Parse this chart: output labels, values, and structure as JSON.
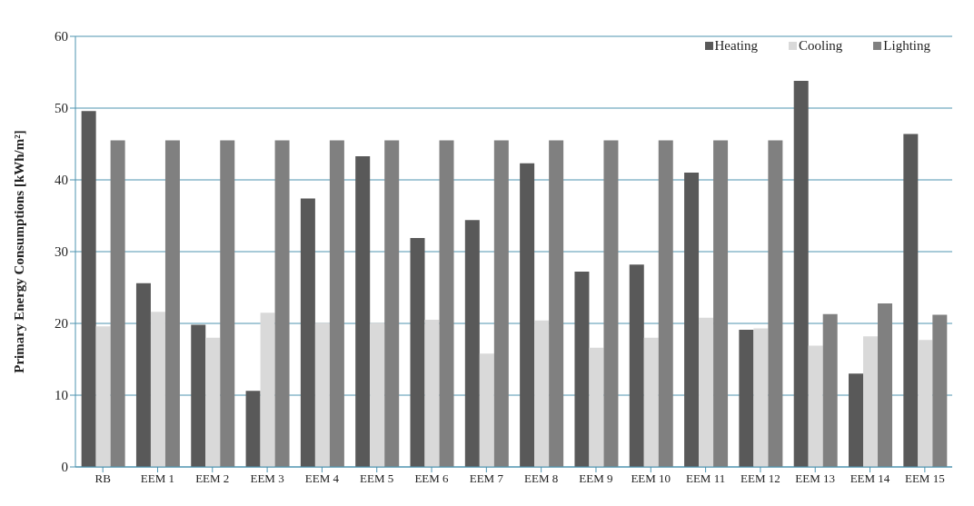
{
  "chart_data": {
    "type": "bar",
    "ylabel": "Primary Energy Consumptions [kWh/m²]",
    "categories": [
      "RB",
      "EEM 1",
      "EEM 2",
      "EEM 3",
      "EEM 4",
      "EEM 5",
      "EEM 6",
      "EEM 7",
      "EEM 8",
      "EEM 9",
      "EEM 10",
      "EEM 11",
      "EEM 12",
      "EEM 13",
      "EEM 14",
      "EEM 15"
    ],
    "series": [
      {
        "name": "Heating",
        "color": "#595959",
        "values": [
          49.6,
          25.6,
          19.8,
          10.6,
          37.4,
          43.3,
          31.9,
          34.4,
          42.3,
          27.2,
          28.2,
          41.0,
          19.1,
          53.8,
          13.0,
          46.4
        ]
      },
      {
        "name": "Cooling",
        "color": "#d9d9d9",
        "values": [
          19.6,
          21.6,
          18.0,
          21.5,
          20.1,
          20.1,
          20.5,
          15.8,
          20.4,
          16.6,
          18.0,
          20.8,
          19.3,
          16.9,
          18.2,
          17.7
        ]
      },
      {
        "name": "Lighting",
        "color": "#808080",
        "values": [
          45.5,
          45.5,
          45.5,
          45.5,
          45.5,
          45.5,
          45.5,
          45.5,
          45.5,
          45.5,
          45.5,
          45.5,
          45.5,
          21.3,
          22.8,
          21.2
        ]
      }
    ],
    "ylim": [
      0,
      60
    ],
    "yticks": [
      0,
      10,
      20,
      30,
      40,
      50,
      60
    ],
    "grid": "y",
    "legend": "top right"
  }
}
